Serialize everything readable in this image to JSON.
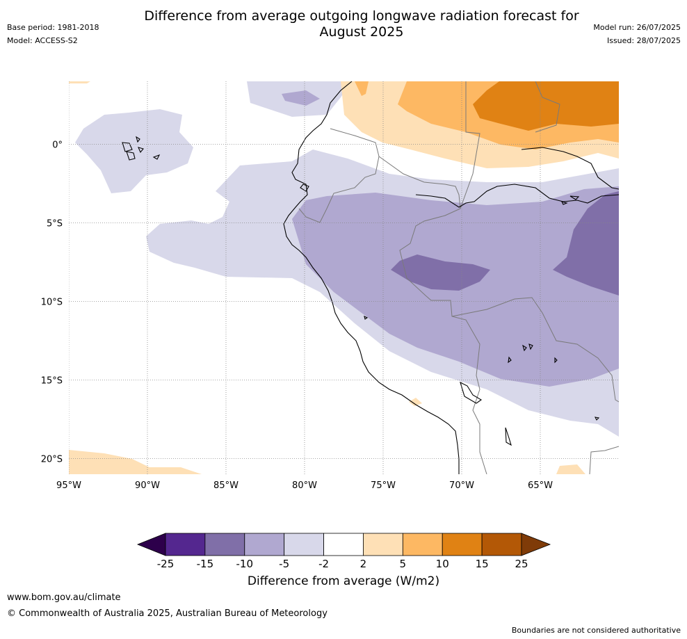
{
  "title_line1": "Difference from average outgoing longwave radiation forecast for",
  "title_line2": "August 2025",
  "base_period": "Base period: 1981-2018",
  "model": "Model: ACCESS-S2",
  "model_run": "Model run: 26/07/2025",
  "issued": "Issued: 28/07/2025",
  "map": {
    "lat_labels": [
      "0°",
      "5°S",
      "10°S",
      "15°S",
      "20°S"
    ],
    "lon_labels": [
      "95°W",
      "90°W",
      "85°W",
      "80°W",
      "75°W",
      "70°W",
      "65°W"
    ],
    "lat_values": [
      0,
      -5,
      -10,
      -15,
      -20
    ],
    "lon_values": [
      -95,
      -90,
      -85,
      -80,
      -75,
      -70,
      -65
    ],
    "extent": {
      "lon_min": -95,
      "lon_max": -60,
      "lat_min": -21,
      "lat_max": 4
    }
  },
  "colorbar": {
    "title": "Difference from average (W/m2)",
    "ticks": [
      "-25",
      "-15",
      "-10",
      "-5",
      "-2",
      "2",
      "5",
      "10",
      "15",
      "25"
    ],
    "colors": [
      "#54278f",
      "#806fa8",
      "#b0a8d0",
      "#d8d8ea",
      "#ffffff",
      "#fee0b6",
      "#fdb863",
      "#e08214",
      "#b35806"
    ],
    "under_color": "#2d004b",
    "over_color": "#7f3b08"
  },
  "website": "www.bom.gov.au/climate",
  "copyright": "© Commonwealth of Australia 2025, Australian Bureau of Meteorology",
  "disclaimer": "Boundaries are not considered authoritative"
}
